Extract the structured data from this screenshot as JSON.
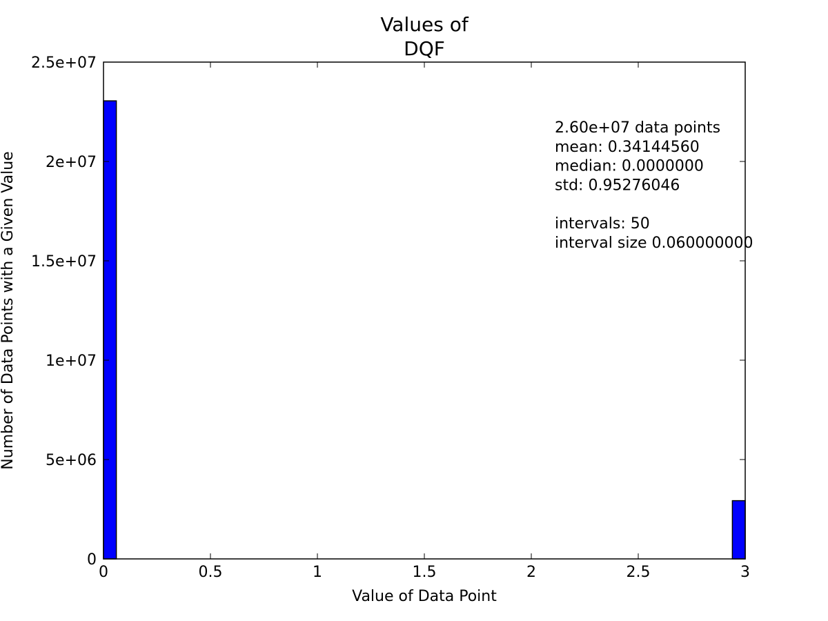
{
  "chart_data": {
    "type": "bar",
    "title_lines": [
      "Values of",
      "DQF"
    ],
    "xlabel": "Value of Data Point",
    "ylabel": "Number of Data Points with a Given Value",
    "xlim": [
      0,
      3
    ],
    "ylim": [
      0,
      25000000
    ],
    "x_ticks": [
      0,
      0.5,
      1,
      1.5,
      2,
      2.5,
      3
    ],
    "x_tick_labels": [
      "0",
      "0.5",
      "1",
      "1.5",
      "2",
      "2.5",
      "3"
    ],
    "y_ticks": [
      0,
      5000000,
      10000000,
      15000000,
      20000000,
      25000000
    ],
    "y_tick_labels": [
      "0",
      "5e+06",
      "1e+07",
      "1.5e+07",
      "2e+07",
      "2.5e+07"
    ],
    "bin_width": 0.06,
    "bars": [
      {
        "x_start": 0.0,
        "x_end": 0.06,
        "value": 23050000
      },
      {
        "x_start": 2.94,
        "x_end": 3.0,
        "value": 2930000
      }
    ],
    "bar_color": "#0000ff",
    "grid": false,
    "annotation_lines": [
      "2.60e+07 data points",
      "mean: 0.34144560",
      "median: 0.0000000",
      "std: 0.95276046",
      "",
      "intervals: 50",
      "interval size 0.060000000"
    ]
  }
}
